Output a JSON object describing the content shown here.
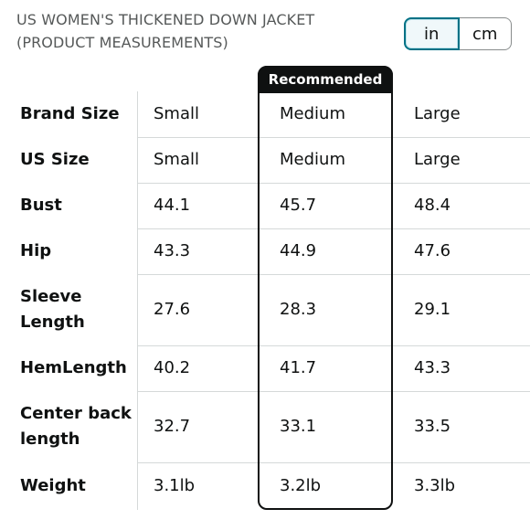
{
  "header": {
    "title_line1": "US WOMEN'S THICKENED DOWN JACKET",
    "title_line2": "(PRODUCT MEASUREMENTS)"
  },
  "unit_toggle": {
    "options": [
      "in",
      "cm"
    ],
    "selected": "in"
  },
  "recommended_label": "Recommended",
  "columns": [
    "Small",
    "Medium",
    "Large"
  ],
  "rows": [
    {
      "label": "Brand Size",
      "values": [
        "Small",
        "Medium",
        "Large"
      ]
    },
    {
      "label": "US Size",
      "values": [
        "Small",
        "Medium",
        "Large"
      ]
    },
    {
      "label": "Bust",
      "values": [
        "44.1",
        "45.7",
        "48.4"
      ]
    },
    {
      "label": "Hip",
      "values": [
        "43.3",
        "44.9",
        "47.6"
      ]
    },
    {
      "label": "Sleeve Length",
      "values": [
        "27.6",
        "28.3",
        "29.1"
      ]
    },
    {
      "label": "HemLength",
      "values": [
        "40.2",
        "41.7",
        "43.3"
      ]
    },
    {
      "label": "Center back length",
      "values": [
        "32.7",
        "33.1",
        "33.5"
      ]
    },
    {
      "label": "Weight",
      "values": [
        "3.1lb",
        "3.2lb",
        "3.3lb"
      ]
    }
  ],
  "colors": {
    "accent": "#007185",
    "border": "#0f1111",
    "grid": "#d5d9d9",
    "subtext": "#565959"
  }
}
